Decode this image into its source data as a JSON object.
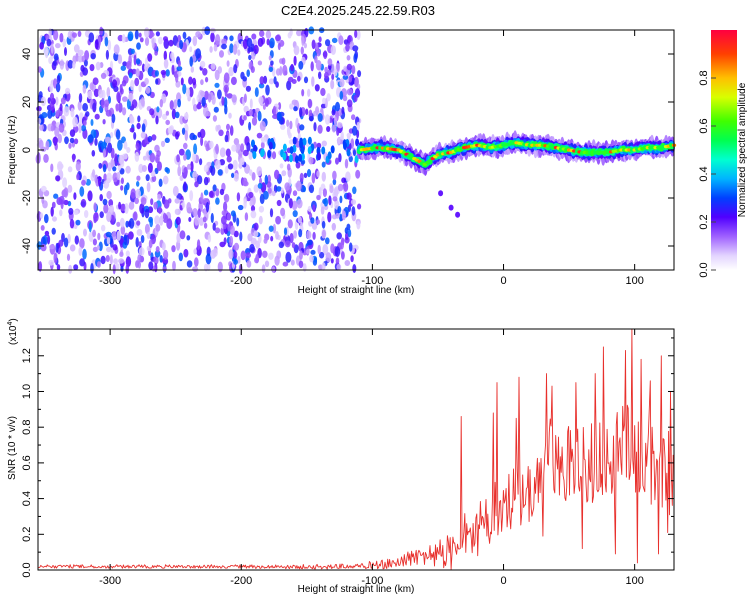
{
  "title": "C2E4.2025.245.22.59.R03",
  "colors": {
    "snr_line": "#e8302c",
    "background": "#ffffff",
    "axis": "#000000"
  },
  "chart_data": [
    {
      "type": "heatmap",
      "name": "spectrogram",
      "xlabel": "Height of straight line (km)",
      "ylabel": "Frequency (Hz)",
      "xlim": [
        -355,
        130
      ],
      "ylim": [
        -50,
        50
      ],
      "xticks": [
        -300,
        -200,
        -100,
        0,
        100
      ],
      "yticks": [
        -40,
        -20,
        0,
        20,
        40
      ],
      "colorbar": {
        "label": "Normalized spectral amplitude",
        "range": [
          0.0,
          1.0
        ],
        "ticks": [
          0.0,
          0.2,
          0.4,
          0.6,
          0.8
        ],
        "tick_labels": [
          "0.0",
          "0.2",
          "0.4",
          "0.6",
          "0.8"
        ],
        "colormap": "rainbow"
      },
      "features": {
        "noise_region_x": [
          -355,
          -110
        ],
        "signal_trace_x": [
          -110,
          130
        ],
        "signal_trace": [
          [
            -110,
            0
          ],
          [
            -95,
            1
          ],
          [
            -80,
            0
          ],
          [
            -70,
            -3
          ],
          [
            -60,
            -6
          ],
          [
            -50,
            -2
          ],
          [
            -40,
            -1
          ],
          [
            -30,
            1
          ],
          [
            -20,
            2
          ],
          [
            -10,
            1
          ],
          [
            0,
            2
          ],
          [
            10,
            3
          ],
          [
            20,
            2
          ],
          [
            30,
            2
          ],
          [
            40,
            1
          ],
          [
            50,
            0
          ],
          [
            60,
            -1
          ],
          [
            70,
            -1
          ],
          [
            80,
            -1
          ],
          [
            90,
            0
          ],
          [
            100,
            0
          ],
          [
            110,
            1
          ],
          [
            120,
            1
          ],
          [
            130,
            2
          ]
        ],
        "faint_branch": [
          [
            -48,
            -18
          ],
          [
            -40,
            -24
          ],
          [
            -35,
            -27
          ]
        ]
      }
    },
    {
      "type": "line",
      "name": "snr",
      "xlabel": "Height of straight line (km)",
      "ylabel": "SNR (10 * v/v)",
      "y_multiplier_label": "(x10",
      "y_multiplier_exp": "4",
      "xlim": [
        -355,
        130
      ],
      "ylim": [
        0,
        13500
      ],
      "xticks": [
        -300,
        -200,
        -100,
        0,
        100
      ],
      "yticks": [
        0,
        2000,
        4000,
        6000,
        8000,
        10000,
        12000
      ],
      "ytick_labels": [
        "0.0",
        "0.2",
        "0.4",
        "0.6",
        "0.8",
        "1.0",
        "1.2"
      ],
      "envelope": [
        [
          -355,
          300
        ],
        [
          -200,
          300
        ],
        [
          -130,
          320
        ],
        [
          -110,
          380
        ],
        [
          -90,
          650
        ],
        [
          -70,
          1200
        ],
        [
          -50,
          1800
        ],
        [
          -40,
          2200
        ],
        [
          -33,
          3500
        ],
        [
          -25,
          3300
        ],
        [
          -15,
          4200
        ],
        [
          -5,
          5200
        ],
        [
          5,
          5800
        ],
        [
          15,
          6000
        ],
        [
          25,
          6400
        ],
        [
          32,
          8400
        ],
        [
          40,
          8800
        ],
        [
          55,
          8000
        ],
        [
          70,
          8600
        ],
        [
          85,
          9000
        ],
        [
          100,
          9800
        ],
        [
          110,
          9300
        ],
        [
          120,
          8200
        ],
        [
          130,
          7800
        ]
      ],
      "spread": [
        [
          -355,
          200
        ],
        [
          -200,
          200
        ],
        [
          -110,
          300
        ],
        [
          -90,
          600
        ],
        [
          -60,
          1200
        ],
        [
          -40,
          2200
        ],
        [
          -20,
          3000
        ],
        [
          0,
          3600
        ],
        [
          20,
          4000
        ],
        [
          40,
          4600
        ],
        [
          60,
          5000
        ],
        [
          80,
          5200
        ],
        [
          100,
          5600
        ],
        [
          130,
          5000
        ]
      ],
      "peaks": [
        [
          -32,
          8600
        ],
        [
          -8,
          8800
        ],
        [
          -5,
          10500
        ],
        [
          10,
          8500
        ],
        [
          12,
          10800
        ],
        [
          33,
          11000
        ],
        [
          37,
          10300
        ],
        [
          55,
          10500
        ],
        [
          70,
          11000
        ],
        [
          76,
          12500
        ],
        [
          93,
          12300
        ],
        [
          98,
          13500
        ],
        [
          105,
          11800
        ],
        [
          112,
          10600
        ],
        [
          120,
          12000
        ],
        [
          127,
          10000
        ]
      ],
      "dips": [
        [
          -33,
          1200
        ],
        [
          -20,
          800
        ],
        [
          30,
          1900
        ],
        [
          60,
          1200
        ],
        [
          85,
          900
        ],
        [
          102,
          400
        ],
        [
          118,
          900
        ],
        [
          125,
          2100
        ]
      ]
    }
  ]
}
